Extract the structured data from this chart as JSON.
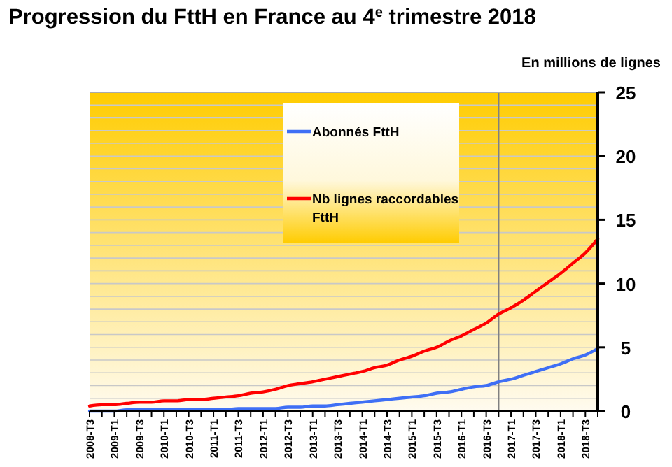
{
  "chart_data": {
    "type": "line",
    "title": "Progression du FttH en France au 4$^{e}$ trimestre 2018",
    "ylabel": "En millions de lignes",
    "categories": [
      "2008-T3",
      null,
      "2009-T1",
      null,
      "2009-T3",
      null,
      "2010-T1",
      null,
      "2010-T3",
      null,
      "2011-T1",
      null,
      "2011-T3",
      null,
      "2012-T1",
      null,
      "2012-T3",
      null,
      "2013-T1",
      null,
      "2013-T3",
      null,
      "2014-T1",
      null,
      "2014-T3",
      null,
      "2015-T1",
      null,
      "2015-T3",
      null,
      "2016-T1",
      null,
      "2016-T3",
      null,
      "2017-T1",
      null,
      "2017-T3",
      null,
      "2018-T1",
      null,
      "2018-T3",
      null
    ],
    "series": [
      {
        "name": "Abonnés FttH",
        "color": "#3f6ff5",
        "values": [
          0,
          0,
          0,
          0.1,
          0.1,
          0.1,
          0.1,
          0.1,
          0.1,
          0.1,
          0.1,
          0.1,
          0.2,
          0.2,
          0.2,
          0.2,
          0.3,
          0.3,
          0.4,
          0.4,
          0.5,
          0.6,
          0.7,
          0.8,
          0.9,
          1.0,
          1.1,
          1.2,
          1.4,
          1.5,
          1.7,
          1.9,
          2.0,
          2.3,
          2.5,
          2.8,
          3.1,
          3.4,
          3.7,
          4.1,
          4.4,
          4.9
        ]
      },
      {
        "name": "Nb lignes raccordables FttH",
        "color": "#ff0000",
        "values": [
          0.4,
          0.5,
          0.5,
          0.6,
          0.7,
          0.7,
          0.8,
          0.8,
          0.9,
          0.9,
          1.0,
          1.1,
          1.2,
          1.4,
          1.5,
          1.7,
          2.0,
          2.15,
          2.3,
          2.5,
          2.7,
          2.9,
          3.1,
          3.4,
          3.6,
          4.0,
          4.3,
          4.7,
          5.0,
          5.5,
          5.9,
          6.4,
          6.9,
          7.6,
          8.1,
          8.7,
          9.4,
          10.1,
          10.8,
          11.6,
          12.4,
          13.5
        ]
      }
    ],
    "ylim": [
      0,
      25
    ],
    "yticks": [
      0,
      5,
      10,
      15,
      20,
      25
    ],
    "grid": "y",
    "legend": "top",
    "marker": "none",
    "line_style": "solid"
  }
}
